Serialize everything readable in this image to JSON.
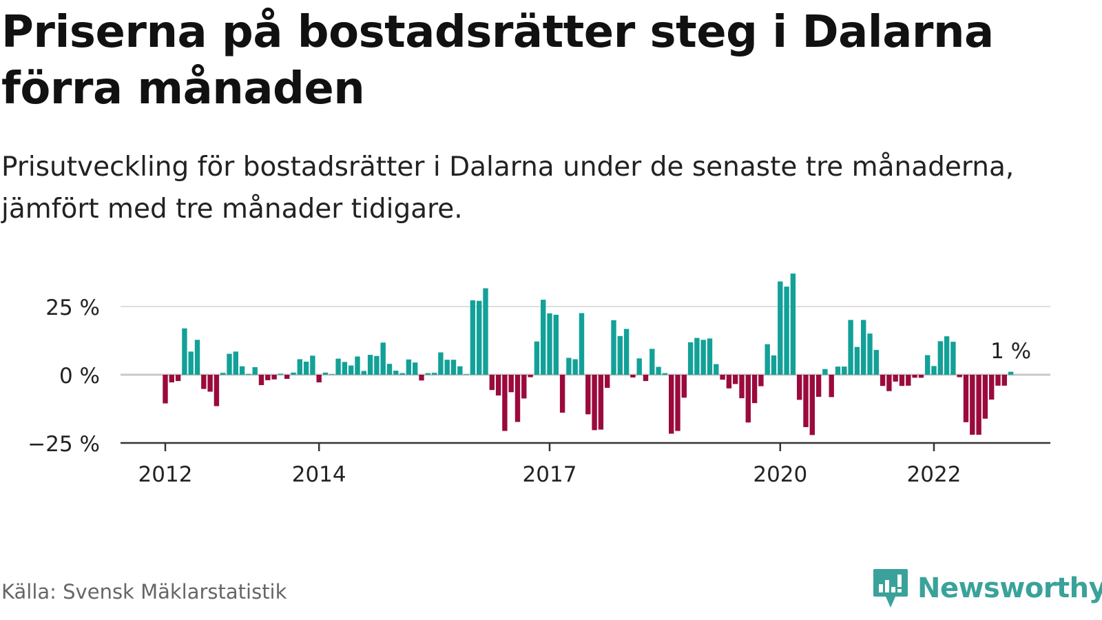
{
  "header": {
    "title": "Priserna på bostadsrätter steg i Dalarna förra månaden",
    "subtitle": "Prisutveckling för bostadsrätter i Dalarna under de senaste tre månaderna, jämfört med tre månader tidigare."
  },
  "footer": {
    "source": "Källa: Svensk Mäklarstatistik",
    "brand": "Newsworthy"
  },
  "colors": {
    "positive": "#12a198",
    "negative": "#9b0a3d",
    "brand": "#3aa29a"
  },
  "chart_data": {
    "type": "bar",
    "x_start": "2012-01",
    "frequency": "monthly",
    "ylim": [
      -25,
      35
    ],
    "yticks": [
      {
        "value": 25,
        "label": "25 %"
      },
      {
        "value": 0,
        "label": "0 %"
      },
      {
        "value": -25,
        "label": "−25 %"
      }
    ],
    "xticks": [
      {
        "date": "2012-01",
        "label": "2012"
      },
      {
        "date": "2014-01",
        "label": "2014"
      },
      {
        "date": "2017-01",
        "label": "2017"
      },
      {
        "date": "2020-01",
        "label": "2020"
      },
      {
        "date": "2022-01",
        "label": "2022"
      }
    ],
    "values": [
      -10.5,
      -2.8,
      -2.3,
      17,
      8.5,
      12.8,
      -5.2,
      -6.2,
      -11.5,
      0.7,
      7.7,
      8.5,
      3.1,
      0.3,
      2.8,
      -3.8,
      -2,
      -1.7,
      0.4,
      -1.5,
      0.8,
      5.7,
      4.8,
      7,
      -2.8,
      0.8,
      0,
      5.9,
      4.7,
      3.4,
      6.7,
      1.4,
      7.3,
      6.9,
      11.8,
      4,
      1.5,
      0.6,
      5.6,
      4.5,
      -2.1,
      0.6,
      0.7,
      8.2,
      5.5,
      5.5,
      3.1,
      0,
      27.3,
      27.1,
      31.7,
      -5.6,
      -7.6,
      -20.6,
      -6.4,
      -17.3,
      -8.7,
      -0.9,
      12.2,
      27.5,
      22.5,
      22,
      -13.9,
      6.2,
      5.7,
      22.6,
      -14.5,
      -20.3,
      -20.1,
      -4.8,
      20,
      14.2,
      16.8,
      -1,
      6,
      -2.3,
      9.5,
      2.9,
      0.6,
      -21.6,
      -20.6,
      -8.4,
      11.9,
      13.5,
      12.8,
      13.3,
      3.9,
      -1.8,
      -5,
      -3.4,
      -8.6,
      -17.5,
      -10.4,
      -4.2,
      11.2,
      7.1,
      34.2,
      32.3,
      37.1,
      -9.2,
      -19.2,
      -22.1,
      -8.1,
      2.1,
      -8.2,
      3,
      3,
      20.1,
      10.2,
      20.1,
      15.1,
      9.1,
      -4.1,
      -6,
      -2.5,
      -4.1,
      -4,
      -1.1,
      -1.1,
      7.2,
      3.2,
      12.3,
      14.1,
      12.1,
      -0.9,
      -17.4,
      -22,
      -22,
      -16.1,
      -9.1,
      -4,
      -4,
      1.1
    ],
    "last_value_label": "1 %"
  }
}
